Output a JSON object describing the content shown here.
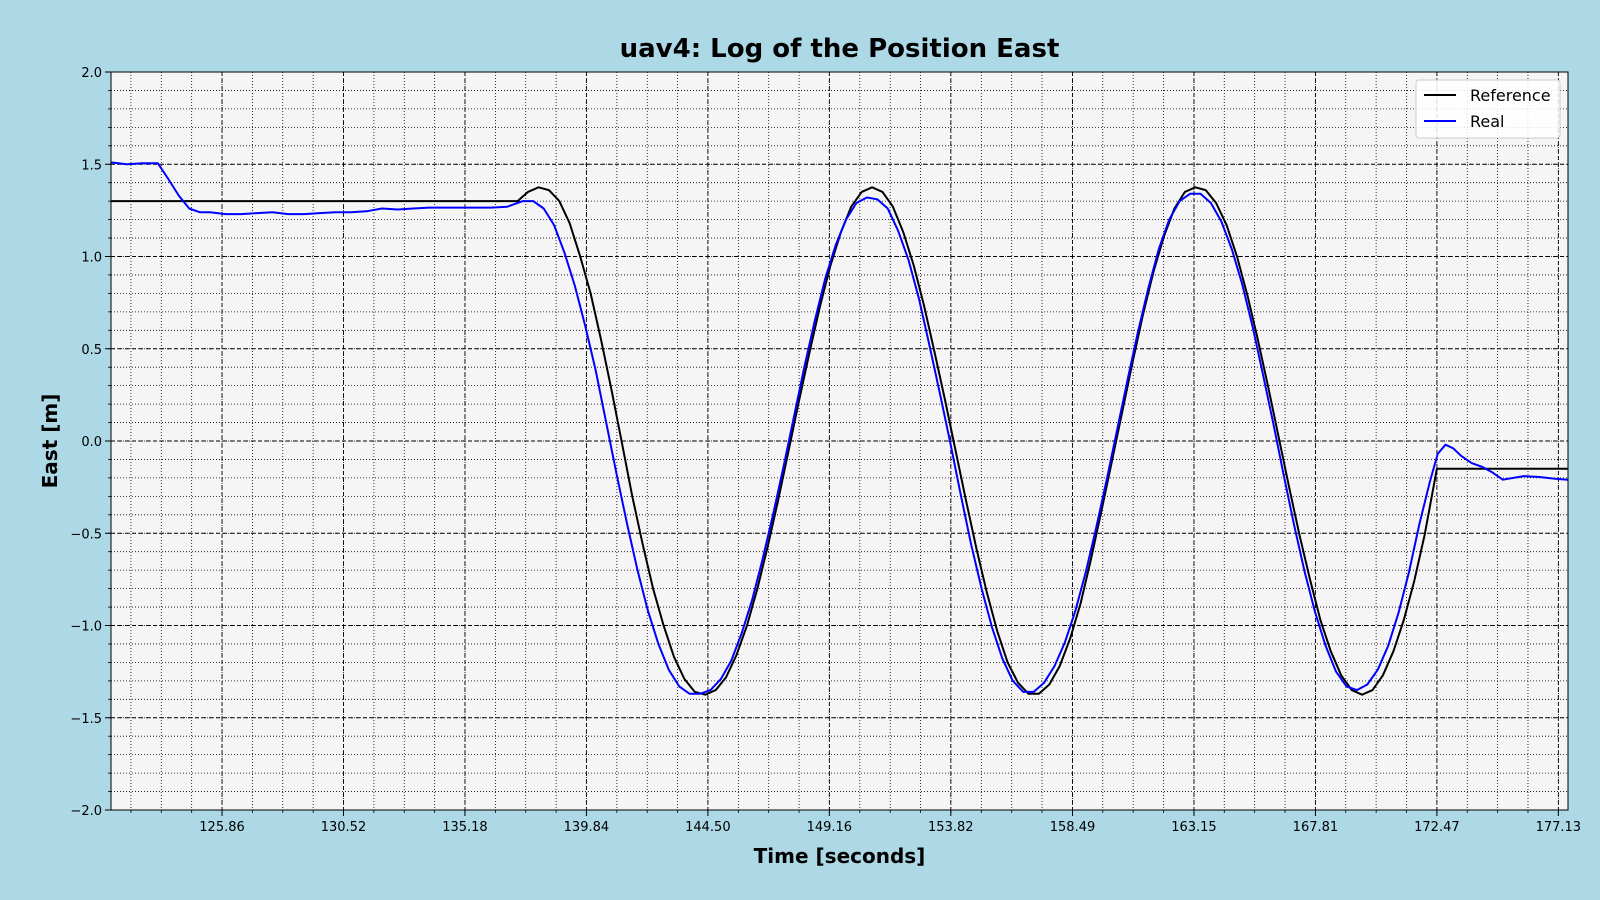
{
  "chart_data": {
    "type": "line",
    "title": "uav4: Log of the Position East",
    "xlabel": "Time [seconds]",
    "ylabel": "East [m]",
    "xlim": [
      121.6,
      177.5
    ],
    "ylim": [
      -2.0,
      2.0
    ],
    "x_ticks": [
      125.86,
      130.52,
      135.18,
      139.84,
      144.5,
      149.16,
      153.82,
      158.49,
      163.15,
      167.81,
      172.47,
      177.13
    ],
    "x_tick_labels": [
      "125.86",
      "130.52",
      "135.18",
      "139.84",
      "144.50",
      "149.16",
      "153.82",
      "158.49",
      "163.15",
      "167.81",
      "172.47",
      "177.13"
    ],
    "y_ticks": [
      -2.0,
      -1.5,
      -1.0,
      -0.5,
      0.0,
      0.5,
      1.0,
      1.5,
      2.0
    ],
    "y_tick_labels": [
      "−2.0",
      "−1.5",
      "−1.0",
      "−0.5",
      "0.0",
      "0.5",
      "1.0",
      "1.5",
      "2.0"
    ],
    "grid": true,
    "legend_position": "top-right",
    "series": [
      {
        "name": "Reference",
        "color": "#000000",
        "x": [
          121.6,
          137.2,
          137.6,
          138.0,
          138.4,
          138.8,
          139.2,
          139.6,
          140.0,
          140.4,
          140.8,
          141.2,
          141.6,
          142.0,
          142.4,
          142.8,
          143.2,
          143.6,
          144.0,
          144.4,
          144.8,
          145.2,
          145.6,
          146.0,
          146.4,
          146.8,
          147.2,
          147.6,
          148.0,
          148.4,
          148.8,
          149.2,
          149.6,
          150.0,
          150.4,
          150.8,
          151.2,
          151.6,
          152.0,
          152.4,
          152.8,
          153.2,
          153.6,
          154.0,
          154.4,
          154.8,
          155.2,
          155.6,
          156.0,
          156.4,
          156.8,
          157.2,
          157.6,
          158.0,
          158.4,
          158.8,
          159.2,
          159.6,
          160.0,
          160.4,
          160.8,
          161.2,
          161.6,
          162.0,
          162.4,
          162.8,
          163.2,
          163.6,
          164.0,
          164.4,
          164.8,
          165.2,
          165.6,
          166.0,
          166.4,
          166.8,
          167.2,
          167.6,
          168.0,
          168.4,
          168.8,
          169.2,
          169.6,
          170.0,
          170.4,
          170.8,
          171.2,
          171.6,
          172.0,
          172.47,
          177.5
        ],
        "y": [
          1.3,
          1.3,
          1.35,
          1.375,
          1.36,
          1.3,
          1.18,
          1.0,
          0.8,
          0.55,
          0.28,
          -0.01,
          -0.3,
          -0.56,
          -0.8,
          -1.0,
          -1.17,
          -1.29,
          -1.36,
          -1.375,
          -1.35,
          -1.28,
          -1.16,
          -1.0,
          -0.8,
          -0.57,
          -0.32,
          -0.05,
          0.22,
          0.48,
          0.73,
          0.95,
          1.13,
          1.27,
          1.35,
          1.375,
          1.35,
          1.27,
          1.13,
          0.95,
          0.73,
          0.48,
          0.22,
          -0.05,
          -0.32,
          -0.58,
          -0.82,
          -1.03,
          -1.2,
          -1.31,
          -1.37,
          -1.37,
          -1.32,
          -1.22,
          -1.07,
          -0.88,
          -0.64,
          -0.38,
          -0.11,
          0.16,
          0.43,
          0.69,
          0.92,
          1.11,
          1.26,
          1.35,
          1.375,
          1.36,
          1.29,
          1.17,
          1.0,
          0.79,
          0.55,
          0.29,
          0.02,
          -0.25,
          -0.51,
          -0.75,
          -0.97,
          -1.14,
          -1.27,
          -1.35,
          -1.375,
          -1.35,
          -1.27,
          -1.14,
          -0.97,
          -0.76,
          -0.51,
          -0.15,
          -0.15
        ]
      },
      {
        "name": "Real",
        "color": "#0000ff",
        "x": [
          121.6,
          122.2,
          122.8,
          123.4,
          123.8,
          124.2,
          124.6,
          125.0,
          125.4,
          126.0,
          126.6,
          127.2,
          127.8,
          128.4,
          129.0,
          129.6,
          130.2,
          130.8,
          131.4,
          132.0,
          132.6,
          133.2,
          133.8,
          134.4,
          135.0,
          135.6,
          136.2,
          136.8,
          137.4,
          137.8,
          138.2,
          138.6,
          139.0,
          139.4,
          139.8,
          140.2,
          140.6,
          141.0,
          141.4,
          141.8,
          142.2,
          142.6,
          143.0,
          143.4,
          143.8,
          144.2,
          144.6,
          145.0,
          145.4,
          145.8,
          146.2,
          146.6,
          147.0,
          147.4,
          147.8,
          148.2,
          148.6,
          149.0,
          149.4,
          149.8,
          150.2,
          150.6,
          151.0,
          151.4,
          151.8,
          152.2,
          152.6,
          153.0,
          153.4,
          153.8,
          154.2,
          154.6,
          155.0,
          155.4,
          155.8,
          156.2,
          156.6,
          157.0,
          157.4,
          157.8,
          158.2,
          158.6,
          159.0,
          159.4,
          159.8,
          160.2,
          160.6,
          161.0,
          161.4,
          161.8,
          162.2,
          162.6,
          163.0,
          163.4,
          163.8,
          164.2,
          164.6,
          165.0,
          165.4,
          165.8,
          166.2,
          166.6,
          167.0,
          167.4,
          167.8,
          168.2,
          168.6,
          169.0,
          169.4,
          169.8,
          170.2,
          170.6,
          171.0,
          171.4,
          171.8,
          172.2,
          172.5,
          172.8,
          173.1,
          173.4,
          173.8,
          174.2,
          174.6,
          175.0,
          175.4,
          175.8,
          176.4,
          177.0,
          177.5
        ],
        "y": [
          1.51,
          1.5,
          1.505,
          1.505,
          1.42,
          1.33,
          1.26,
          1.24,
          1.24,
          1.23,
          1.23,
          1.235,
          1.24,
          1.23,
          1.23,
          1.235,
          1.24,
          1.24,
          1.245,
          1.26,
          1.255,
          1.26,
          1.265,
          1.265,
          1.265,
          1.265,
          1.265,
          1.27,
          1.3,
          1.3,
          1.26,
          1.17,
          1.02,
          0.84,
          0.62,
          0.38,
          0.1,
          -0.18,
          -0.45,
          -0.7,
          -0.92,
          -1.1,
          -1.24,
          -1.33,
          -1.37,
          -1.37,
          -1.35,
          -1.29,
          -1.19,
          -1.04,
          -0.86,
          -0.64,
          -0.4,
          -0.14,
          0.13,
          0.4,
          0.65,
          0.88,
          1.06,
          1.2,
          1.29,
          1.32,
          1.31,
          1.26,
          1.14,
          0.98,
          0.77,
          0.52,
          0.26,
          -0.01,
          -0.29,
          -0.56,
          -0.8,
          -1.01,
          -1.18,
          -1.3,
          -1.36,
          -1.36,
          -1.31,
          -1.22,
          -1.09,
          -0.92,
          -0.71,
          -0.47,
          -0.21,
          0.06,
          0.33,
          0.59,
          0.83,
          1.04,
          1.2,
          1.3,
          1.34,
          1.34,
          1.29,
          1.19,
          1.04,
          0.85,
          0.62,
          0.36,
          0.09,
          -0.19,
          -0.46,
          -0.71,
          -0.93,
          -1.11,
          -1.25,
          -1.33,
          -1.35,
          -1.32,
          -1.24,
          -1.11,
          -0.93,
          -0.71,
          -0.45,
          -0.22,
          -0.07,
          -0.02,
          -0.04,
          -0.08,
          -0.12,
          -0.14,
          -0.17,
          -0.21,
          -0.2,
          -0.19,
          -0.195,
          -0.205,
          -0.21
        ]
      }
    ]
  }
}
